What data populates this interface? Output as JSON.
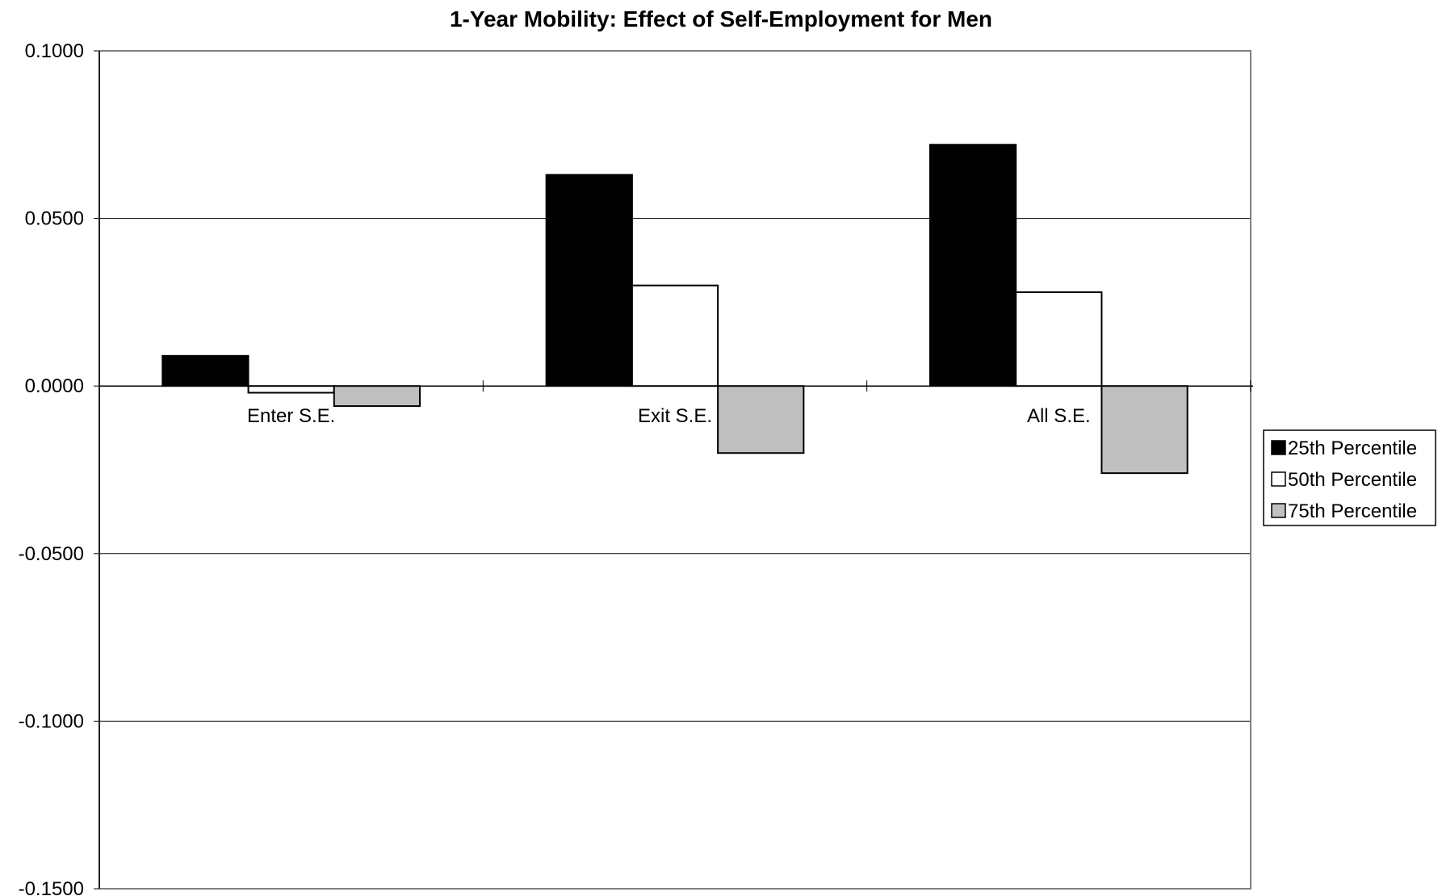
{
  "chart_data": {
    "type": "bar",
    "title": "1-Year Mobility: Effect of Self-Employment for Men",
    "xlabel": "",
    "ylabel": "",
    "categories": [
      "Enter S.E.",
      "Exit S.E.",
      "All S.E."
    ],
    "series": [
      {
        "name": "25th Percentile",
        "values": [
          0.009,
          0.063,
          0.072
        ],
        "color": "#000000"
      },
      {
        "name": "50th Percentile",
        "values": [
          -0.002,
          0.03,
          0.028
        ],
        "color": "#ffffff"
      },
      {
        "name": "75th Percentile",
        "values": [
          -0.006,
          -0.02,
          -0.026
        ],
        "color": "#c0c0c0"
      }
    ],
    "ylim": [
      -0.15,
      0.1
    ],
    "yticks": [
      "0.1000",
      "0.0500",
      "0.0000",
      "-0.0500",
      "-0.1000",
      "-0.1500"
    ],
    "ytick_values": [
      0.1,
      0.05,
      0.0,
      -0.05,
      -0.1,
      -0.15
    ],
    "grid": true,
    "legend_position": "right"
  }
}
